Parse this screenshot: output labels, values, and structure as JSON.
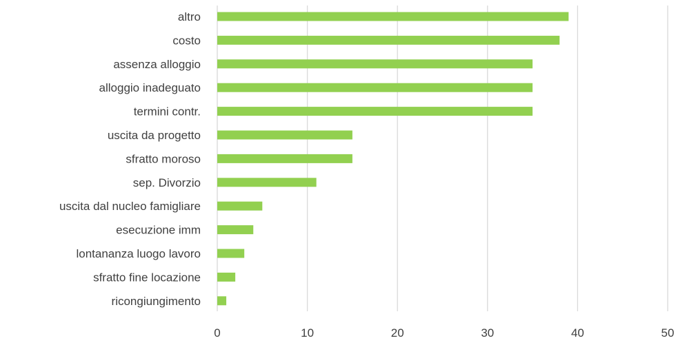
{
  "chart_data": {
    "type": "bar",
    "orientation": "horizontal",
    "categories": [
      "altro",
      "costo",
      "assenza alloggio",
      "alloggio inadeguato",
      "termini contr.",
      "uscita da progetto",
      "sfratto moroso",
      "sep. Divorzio",
      "uscita dal nucleo famigliare",
      "esecuzione imm",
      "lontananza luogo lavoro",
      "sfratto fine locazione",
      "ricongiungimento"
    ],
    "values": [
      39,
      38,
      35,
      35,
      35,
      15,
      15,
      11,
      5,
      4,
      3,
      2,
      1
    ],
    "xlim": [
      0,
      50
    ],
    "xticks": [
      "0",
      "10",
      "20",
      "30",
      "40",
      "50"
    ],
    "grid": true,
    "bar_color": "#92d050",
    "title": "",
    "xlabel": "",
    "ylabel": ""
  }
}
